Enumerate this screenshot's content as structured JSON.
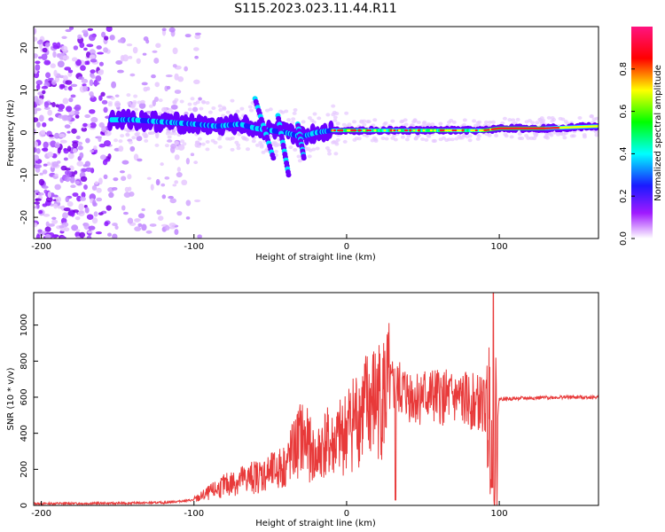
{
  "title": "S115.2023.023.11.44.R11",
  "chart_data": [
    {
      "type": "heatmap",
      "xlabel": "Height of straight line (km)",
      "ylabel": "Frequency (Hz)",
      "xlim": [
        -205,
        165
      ],
      "ylim": [
        -25,
        25
      ],
      "xticks": [
        -200,
        -100,
        0,
        100
      ],
      "yticks": [
        -20,
        -10,
        0,
        10,
        20
      ],
      "colorbar": {
        "label": "Normalized spectral amplitude",
        "range": [
          0.0,
          1.0
        ],
        "ticks": [
          0.0,
          0.2,
          0.4,
          0.6,
          0.8
        ],
        "colors": [
          "#ffffff",
          "#a01aff",
          "#1a1aff",
          "#00ffff",
          "#00ff00",
          "#ffff00",
          "#ff0000",
          "#ff1480"
        ]
      },
      "trace": {
        "x": [
          -155,
          -140,
          -120,
          -100,
          -85,
          -70,
          -60,
          -50,
          -40,
          -30,
          -20,
          -10,
          0,
          20,
          50,
          80,
          90,
          100,
          130,
          165
        ],
        "y": [
          3,
          3,
          2.5,
          2,
          1.5,
          2,
          1,
          0.5,
          0,
          -1,
          0,
          0.5,
          0.5,
          0.5,
          0.5,
          0.5,
          0.5,
          1,
          1,
          1.5
        ]
      }
    },
    {
      "type": "line",
      "xlabel": "Height of straight line (km)",
      "ylabel": "SNR (10 * v/v)",
      "xlim": [
        -205,
        165
      ],
      "ylim": [
        0,
        1180
      ],
      "xticks": [
        -200,
        -100,
        0,
        100
      ],
      "yticks": [
        0,
        200,
        400,
        600,
        800,
        1000
      ],
      "color": "#e83a3a",
      "series": {
        "x": [
          -205,
          -150,
          -120,
          -100,
          -90,
          -80,
          -70,
          -60,
          -50,
          -40,
          -35,
          -30,
          -25,
          -20,
          -15,
          -10,
          -5,
          0,
          5,
          10,
          15,
          20,
          25,
          30,
          35,
          40,
          45,
          50,
          60,
          70,
          80,
          90,
          95,
          97,
          100,
          120,
          140,
          165
        ],
        "y": [
          10,
          12,
          15,
          30,
          70,
          110,
          140,
          160,
          180,
          220,
          300,
          380,
          330,
          250,
          350,
          330,
          360,
          420,
          480,
          520,
          560,
          580,
          620,
          650,
          640,
          620,
          600,
          610,
          600,
          590,
          580,
          560,
          500,
          300,
          590,
          595,
          600,
          600
        ]
      }
    }
  ]
}
